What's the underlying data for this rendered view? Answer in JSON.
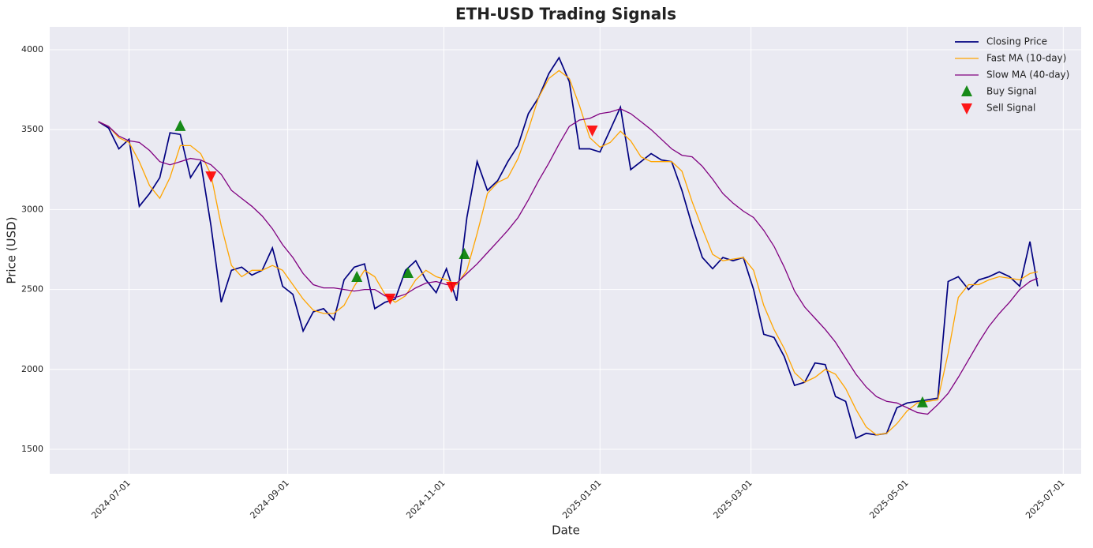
{
  "chart_data": {
    "type": "line",
    "title": "ETH-USD Trading Signals",
    "x_label": "Date",
    "y_label": "Price (USD)",
    "x": [
      "2024-06-19",
      "2024-06-23",
      "2024-06-27",
      "2024-07-01",
      "2024-07-05",
      "2024-07-09",
      "2024-07-13",
      "2024-07-17",
      "2024-07-21",
      "2024-07-25",
      "2024-07-29",
      "2024-08-02",
      "2024-08-06",
      "2024-08-10",
      "2024-08-14",
      "2024-08-18",
      "2024-08-22",
      "2024-08-26",
      "2024-08-30",
      "2024-09-03",
      "2024-09-07",
      "2024-09-11",
      "2024-09-15",
      "2024-09-19",
      "2024-09-23",
      "2024-09-27",
      "2024-10-01",
      "2024-10-05",
      "2024-10-09",
      "2024-10-13",
      "2024-10-17",
      "2024-10-21",
      "2024-10-25",
      "2024-10-29",
      "2024-11-02",
      "2024-11-06",
      "2024-11-10",
      "2024-11-14",
      "2024-11-18",
      "2024-11-22",
      "2024-11-26",
      "2024-11-30",
      "2024-12-04",
      "2024-12-08",
      "2024-12-12",
      "2024-12-16",
      "2024-12-20",
      "2024-12-24",
      "2024-12-28",
      "2025-01-01",
      "2025-01-05",
      "2025-01-09",
      "2025-01-13",
      "2025-01-17",
      "2025-01-21",
      "2025-01-25",
      "2025-01-29",
      "2025-02-02",
      "2025-02-06",
      "2025-02-10",
      "2025-02-14",
      "2025-02-18",
      "2025-02-22",
      "2025-02-26",
      "2025-03-02",
      "2025-03-06",
      "2025-03-10",
      "2025-03-14",
      "2025-03-18",
      "2025-03-22",
      "2025-03-26",
      "2025-03-30",
      "2025-04-03",
      "2025-04-07",
      "2025-04-11",
      "2025-04-15",
      "2025-04-19",
      "2025-04-23",
      "2025-04-27",
      "2025-05-01",
      "2025-05-05",
      "2025-05-09",
      "2025-05-13",
      "2025-05-17",
      "2025-05-21",
      "2025-05-25",
      "2025-05-29",
      "2025-06-02",
      "2025-06-06",
      "2025-06-10",
      "2025-06-14",
      "2025-06-18",
      "2025-06-21"
    ],
    "series": [
      {
        "name": "Closing Price",
        "color": "#000080",
        "width": 1.7,
        "values": [
          3550,
          3510,
          3380,
          3440,
          3020,
          3100,
          3200,
          3480,
          3470,
          3200,
          3300,
          2900,
          2420,
          2620,
          2640,
          2590,
          2620,
          2760,
          2520,
          2470,
          2240,
          2360,
          2380,
          2310,
          2560,
          2640,
          2660,
          2380,
          2420,
          2440,
          2620,
          2680,
          2560,
          2480,
          2630,
          2430,
          2950,
          3300,
          3120,
          3180,
          3300,
          3400,
          3600,
          3700,
          3850,
          3950,
          3800,
          3380,
          3380,
          3360,
          3500,
          3640,
          3250,
          3300,
          3350,
          3310,
          3300,
          3120,
          2900,
          2700,
          2630,
          2700,
          2680,
          2700,
          2500,
          2220,
          2200,
          2080,
          1900,
          1920,
          2040,
          2030,
          1830,
          1800,
          1570,
          1600,
          1590,
          1600,
          1760,
          1790,
          1800,
          1810,
          1820,
          2550,
          2580,
          2500,
          2560,
          2580,
          2610,
          2580,
          2520,
          2800,
          2520
        ]
      },
      {
        "name": "Fast MA (10-day)",
        "color": "#ffa500",
        "width": 1.3,
        "values": [
          3550,
          3520,
          3450,
          3420,
          3300,
          3150,
          3070,
          3200,
          3400,
          3400,
          3350,
          3220,
          2900,
          2650,
          2580,
          2620,
          2620,
          2650,
          2620,
          2530,
          2440,
          2370,
          2350,
          2350,
          2400,
          2520,
          2620,
          2580,
          2470,
          2420,
          2460,
          2560,
          2620,
          2580,
          2560,
          2530,
          2620,
          2850,
          3100,
          3170,
          3200,
          3320,
          3500,
          3700,
          3820,
          3870,
          3820,
          3650,
          3450,
          3390,
          3420,
          3490,
          3430,
          3330,
          3300,
          3300,
          3300,
          3240,
          3050,
          2880,
          2720,
          2680,
          2690,
          2700,
          2620,
          2400,
          2250,
          2130,
          1980,
          1920,
          1950,
          2000,
          1970,
          1880,
          1750,
          1640,
          1590,
          1600,
          1660,
          1740,
          1790,
          1800,
          1810,
          2100,
          2450,
          2530,
          2530,
          2560,
          2580,
          2570,
          2560,
          2600,
          2610
        ]
      },
      {
        "name": "Slow MA (40-day)",
        "color": "#800080",
        "width": 1.3,
        "values": [
          3550,
          3520,
          3460,
          3430,
          3420,
          3370,
          3300,
          3280,
          3300,
          3320,
          3310,
          3280,
          3220,
          3120,
          3070,
          3020,
          2960,
          2880,
          2780,
          2700,
          2600,
          2530,
          2510,
          2510,
          2500,
          2490,
          2500,
          2500,
          2460,
          2450,
          2470,
          2510,
          2540,
          2550,
          2530,
          2540,
          2600,
          2660,
          2730,
          2800,
          2870,
          2950,
          3060,
          3180,
          3290,
          3410,
          3520,
          3560,
          3570,
          3600,
          3610,
          3630,
          3600,
          3550,
          3500,
          3440,
          3380,
          3340,
          3330,
          3270,
          3190,
          3100,
          3040,
          2990,
          2950,
          2870,
          2770,
          2640,
          2490,
          2390,
          2320,
          2250,
          2170,
          2070,
          1970,
          1890,
          1830,
          1800,
          1790,
          1760,
          1730,
          1720,
          1780,
          1850,
          1950,
          2060,
          2170,
          2270,
          2350,
          2420,
          2500,
          2550,
          2570
        ]
      },
      {
        "name": "Buy Signal",
        "color": "#008000",
        "marker": "triangle-up",
        "x": [
          "2024-07-21",
          "2024-09-28",
          "2024-10-18",
          "2024-11-09",
          "2025-05-07"
        ],
        "values": [
          3521,
          2577,
          2602,
          2720,
          1792
        ]
      },
      {
        "name": "Sell Signal",
        "color": "#ff0000",
        "marker": "triangle-down",
        "x": [
          "2024-08-02",
          "2024-10-11",
          "2024-11-04",
          "2024-12-29"
        ],
        "values": [
          3209,
          2444,
          2518,
          3496
        ]
      }
    ],
    "xlim": [
      "2024-05-31",
      "2025-07-08"
    ],
    "xticks": [
      "2024-07-01",
      "2024-09-01",
      "2024-11-01",
      "2025-01-01",
      "2025-03-01",
      "2025-05-01",
      "2025-07-01"
    ],
    "ylim": [
      1347,
      4143
    ],
    "yticks": [
      1500,
      2000,
      2500,
      3000,
      3500,
      4000
    ],
    "grid": true,
    "legend": "upper right"
  }
}
